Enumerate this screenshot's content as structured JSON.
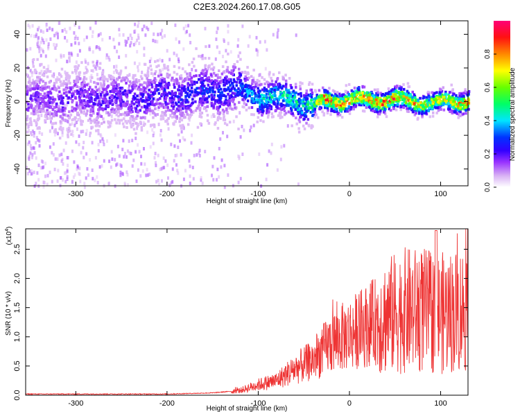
{
  "title": "C2E3.2024.260.17.08.G05",
  "chart_data": [
    {
      "type": "heatmap",
      "xlabel": "Height of straight line (km)",
      "ylabel": "Frequency (Hz)",
      "xlim": [
        -355,
        130
      ],
      "ylim": [
        -50,
        48
      ],
      "xticks": [
        -300,
        -200,
        -100,
        0,
        100
      ],
      "yticks": [
        40,
        20,
        0,
        -20,
        -40
      ],
      "colorbar": {
        "label": "Normalized spectral amplitude",
        "range": [
          0.0,
          1.0
        ],
        "ticks": [
          0.0,
          0.2,
          0.4,
          0.6,
          0.8
        ],
        "colormap": [
          "#ffffff",
          "#d2a6f2",
          "#7f00ff",
          "#0000ff",
          "#00ffff",
          "#00ff00",
          "#ffff00",
          "#ff8000",
          "#ff0000",
          "#ff0099"
        ]
      },
      "ridge": {
        "description_points": [
          {
            "x": -355,
            "f": 1,
            "amp": 0.18
          },
          {
            "x": -250,
            "f": 2,
            "amp": 0.22
          },
          {
            "x": -170,
            "f": 5,
            "amp": 0.28
          },
          {
            "x": -130,
            "f": 8,
            "amp": 0.3
          },
          {
            "x": -100,
            "f": 3,
            "amp": 0.45
          },
          {
            "x": -60,
            "f": 1,
            "amp": 0.5
          },
          {
            "x": -40,
            "f": -3,
            "amp": 0.55
          },
          {
            "x": -30,
            "f": 0,
            "amp": 0.9
          },
          {
            "x": 0,
            "f": 1,
            "amp": 0.85
          },
          {
            "x": 50,
            "f": 1,
            "amp": 0.9
          },
          {
            "x": 90,
            "f": -1,
            "amp": 0.7
          },
          {
            "x": 130,
            "f": 1,
            "amp": 0.85
          }
        ]
      }
    },
    {
      "type": "line",
      "xlabel": "Height of straight line (km)",
      "ylabel": "SNR (10 * v/v)",
      "scale_note": "(x10",
      "scale_exp": "4",
      "xlim": [
        -355,
        130
      ],
      "ylim": [
        0,
        2.85
      ],
      "xticks": [
        -300,
        -200,
        -100,
        0,
        100
      ],
      "yticks": [
        0.0,
        0.5,
        1.0,
        1.5,
        2.0,
        2.5
      ],
      "color": "#ee3333",
      "envelope": [
        {
          "x": -355,
          "y": 0.02
        },
        {
          "x": -200,
          "y": 0.02
        },
        {
          "x": -150,
          "y": 0.04
        },
        {
          "x": -120,
          "y": 0.08
        },
        {
          "x": -100,
          "y": 0.18
        },
        {
          "x": -80,
          "y": 0.25
        },
        {
          "x": -60,
          "y": 0.45
        },
        {
          "x": -40,
          "y": 0.6
        },
        {
          "x": -20,
          "y": 0.9
        },
        {
          "x": 0,
          "y": 1.05
        },
        {
          "x": 20,
          "y": 1.2
        },
        {
          "x": 40,
          "y": 1.35
        },
        {
          "x": 60,
          "y": 1.45
        },
        {
          "x": 80,
          "y": 1.45
        },
        {
          "x": 100,
          "y": 1.4
        },
        {
          "x": 120,
          "y": 1.45
        },
        {
          "x": 130,
          "y": 1.5
        }
      ],
      "peak": {
        "x": 95,
        "y": 2.82
      }
    }
  ]
}
